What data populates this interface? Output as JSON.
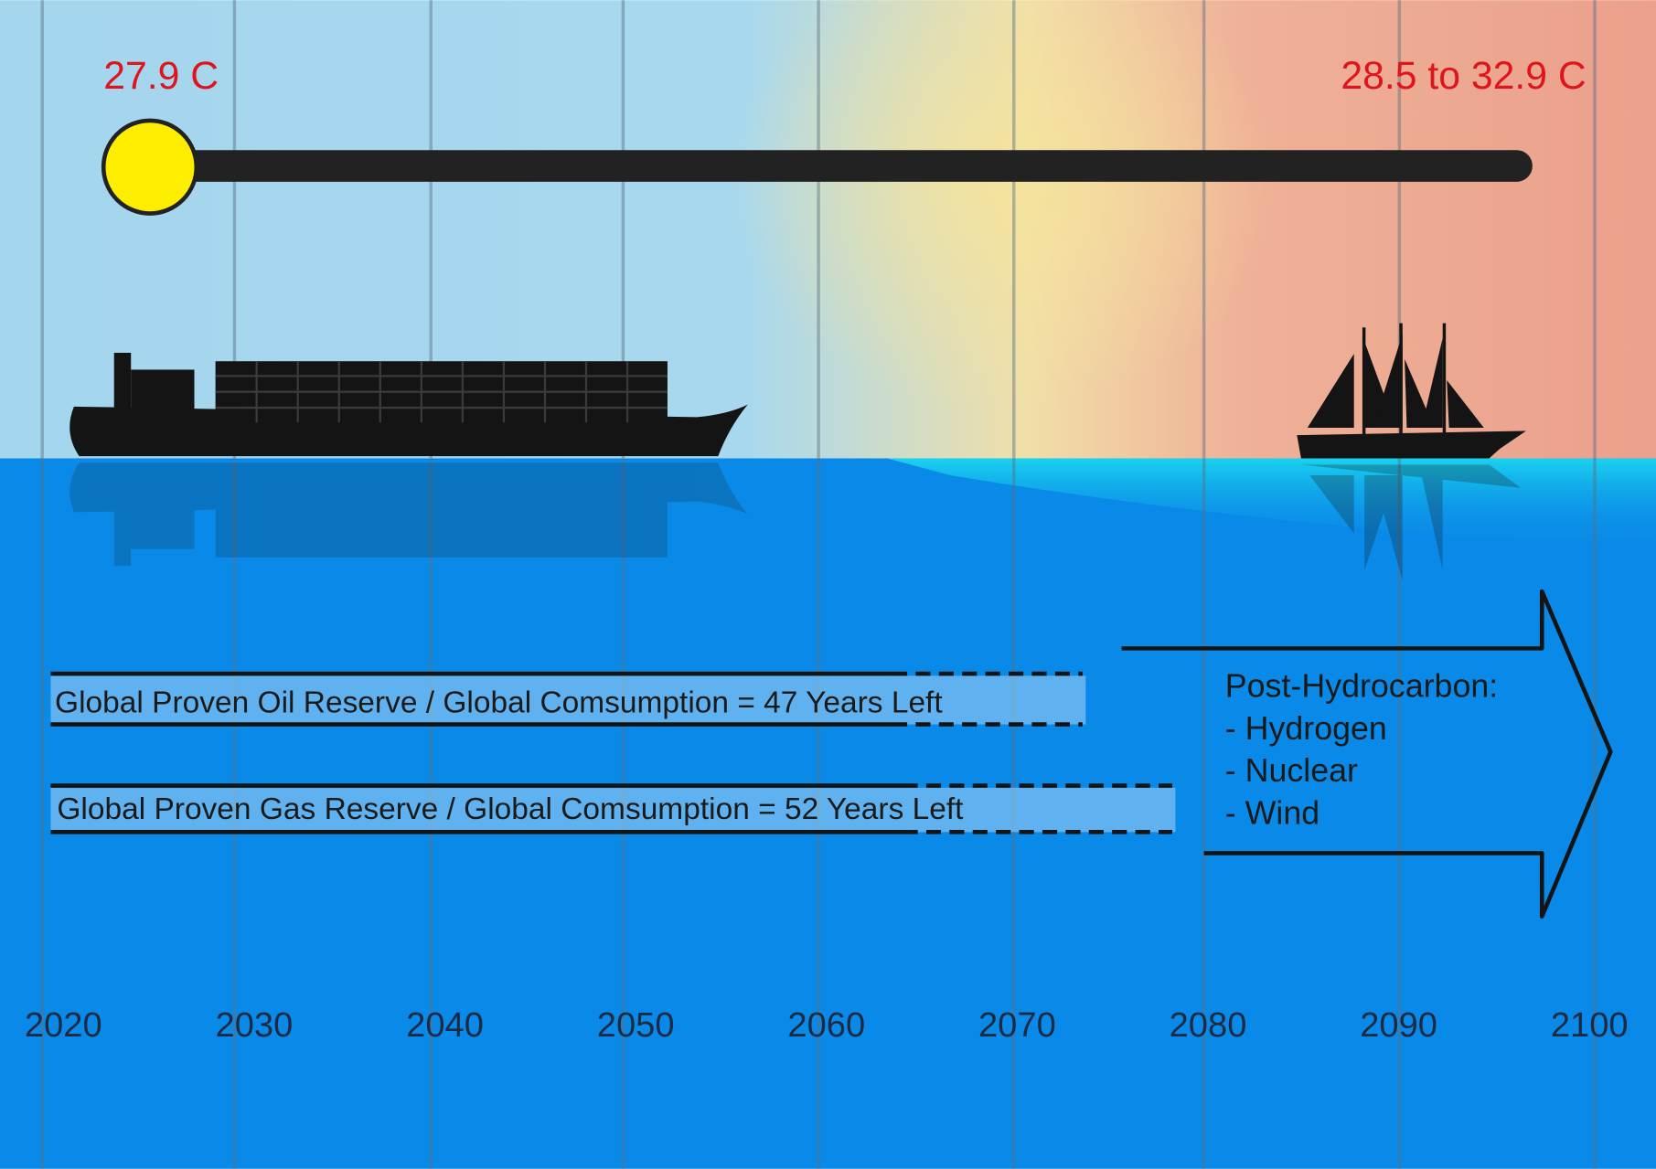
{
  "temperature": {
    "now": "27.9 C",
    "future": "28.5 to 32.9 C"
  },
  "reserves": {
    "oil": "Global Proven Oil Reserve / Global Comsumption = 47 Years Left",
    "gas": "Global Proven Gas Reserve / Global Comsumption = 52 Years Left"
  },
  "future_energy": {
    "title": "Post-Hydrocarbon:",
    "items": [
      "- Hydrogen",
      "- Nuclear",
      "- Wind"
    ]
  },
  "timeline": {
    "years": [
      2020,
      2030,
      2040,
      2050,
      2060,
      2070,
      2080,
      2090,
      2100
    ]
  }
}
